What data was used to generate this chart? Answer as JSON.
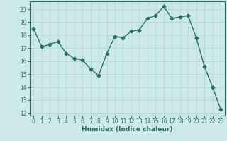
{
  "x": [
    0,
    1,
    2,
    3,
    4,
    5,
    6,
    7,
    8,
    9,
    10,
    11,
    12,
    13,
    14,
    15,
    16,
    17,
    18,
    19,
    20,
    21,
    22,
    23
  ],
  "y": [
    18.5,
    17.1,
    17.3,
    17.5,
    16.6,
    16.2,
    16.1,
    15.4,
    14.9,
    16.6,
    17.9,
    17.8,
    18.3,
    18.4,
    19.3,
    19.5,
    20.2,
    19.3,
    19.4,
    19.5,
    17.8,
    15.6,
    14.0,
    12.3
  ],
  "line_color": "#2a6f6f",
  "marker": "D",
  "markersize": 2.5,
  "linewidth": 1.0,
  "bg_color": "#cce9e8",
  "grid_color": "#b0d4d3",
  "xlabel": "Humidex (Indice chaleur)",
  "xlim": [
    -0.5,
    23.5
  ],
  "ylim": [
    11.8,
    20.6
  ],
  "yticks": [
    12,
    13,
    14,
    15,
    16,
    17,
    18,
    19,
    20
  ],
  "xticks": [
    0,
    1,
    2,
    3,
    4,
    5,
    6,
    7,
    8,
    9,
    10,
    11,
    12,
    13,
    14,
    15,
    16,
    17,
    18,
    19,
    20,
    21,
    22,
    23
  ],
  "xlabel_fontsize": 6.5,
  "tick_fontsize": 5.5
}
